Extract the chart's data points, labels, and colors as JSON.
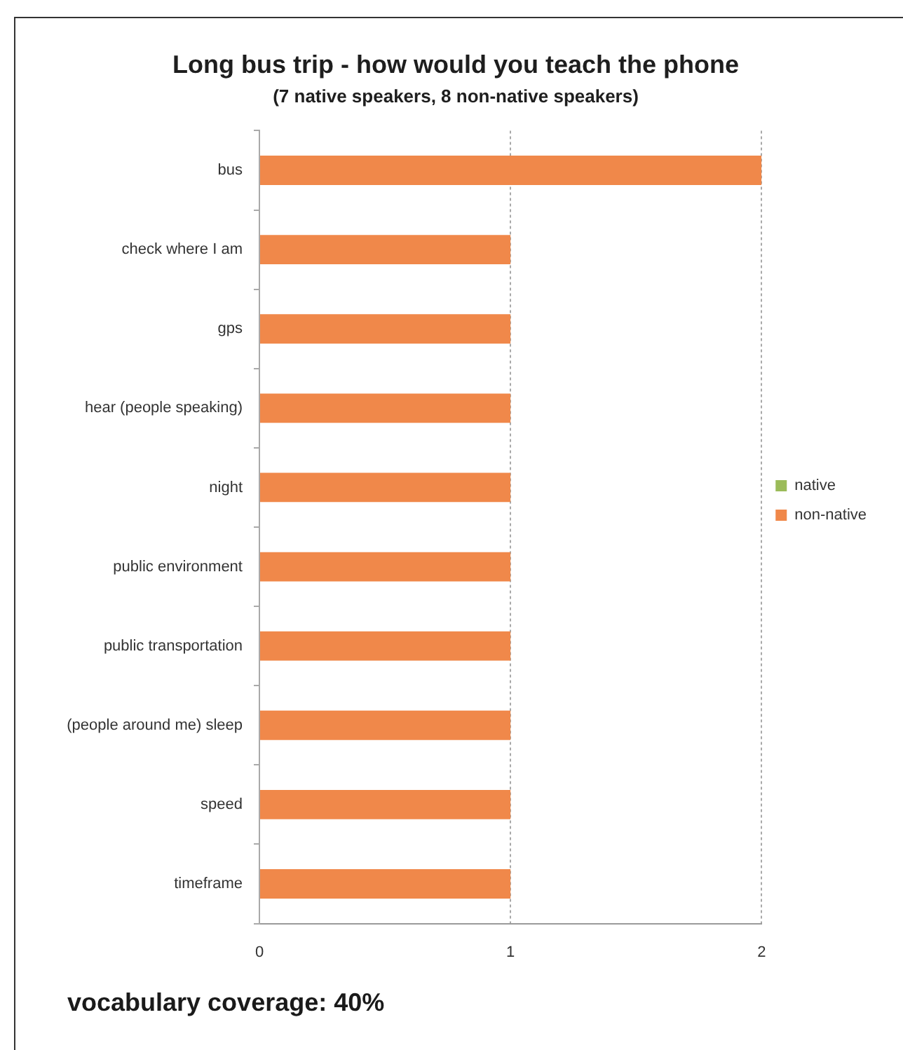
{
  "chart_data": {
    "type": "bar",
    "orientation": "horizontal",
    "stacked": true,
    "title": "Long bus trip - how would you teach the phone",
    "subtitle": "(7 native speakers, 8 non-native speakers)",
    "categories": [
      "bus",
      "check where I am",
      "gps",
      "hear (people speaking)",
      "night",
      "public environment",
      "public transportation",
      "(people around me) sleep",
      "speed",
      "timeframe"
    ],
    "series": [
      {
        "name": "native",
        "color": "#9bbb59",
        "values": [
          0,
          0,
          0,
          0,
          0,
          0,
          0,
          0,
          0,
          0
        ]
      },
      {
        "name": "non-native",
        "color": "#f0884a",
        "values": [
          2,
          1,
          1,
          1,
          1,
          1,
          1,
          1,
          1,
          1
        ]
      }
    ],
    "xlim": [
      0,
      2
    ],
    "xticks": [
      0,
      1,
      2
    ],
    "grid": "x",
    "legend": "right",
    "annotations": [
      "vocabulary coverage: 40%"
    ]
  }
}
